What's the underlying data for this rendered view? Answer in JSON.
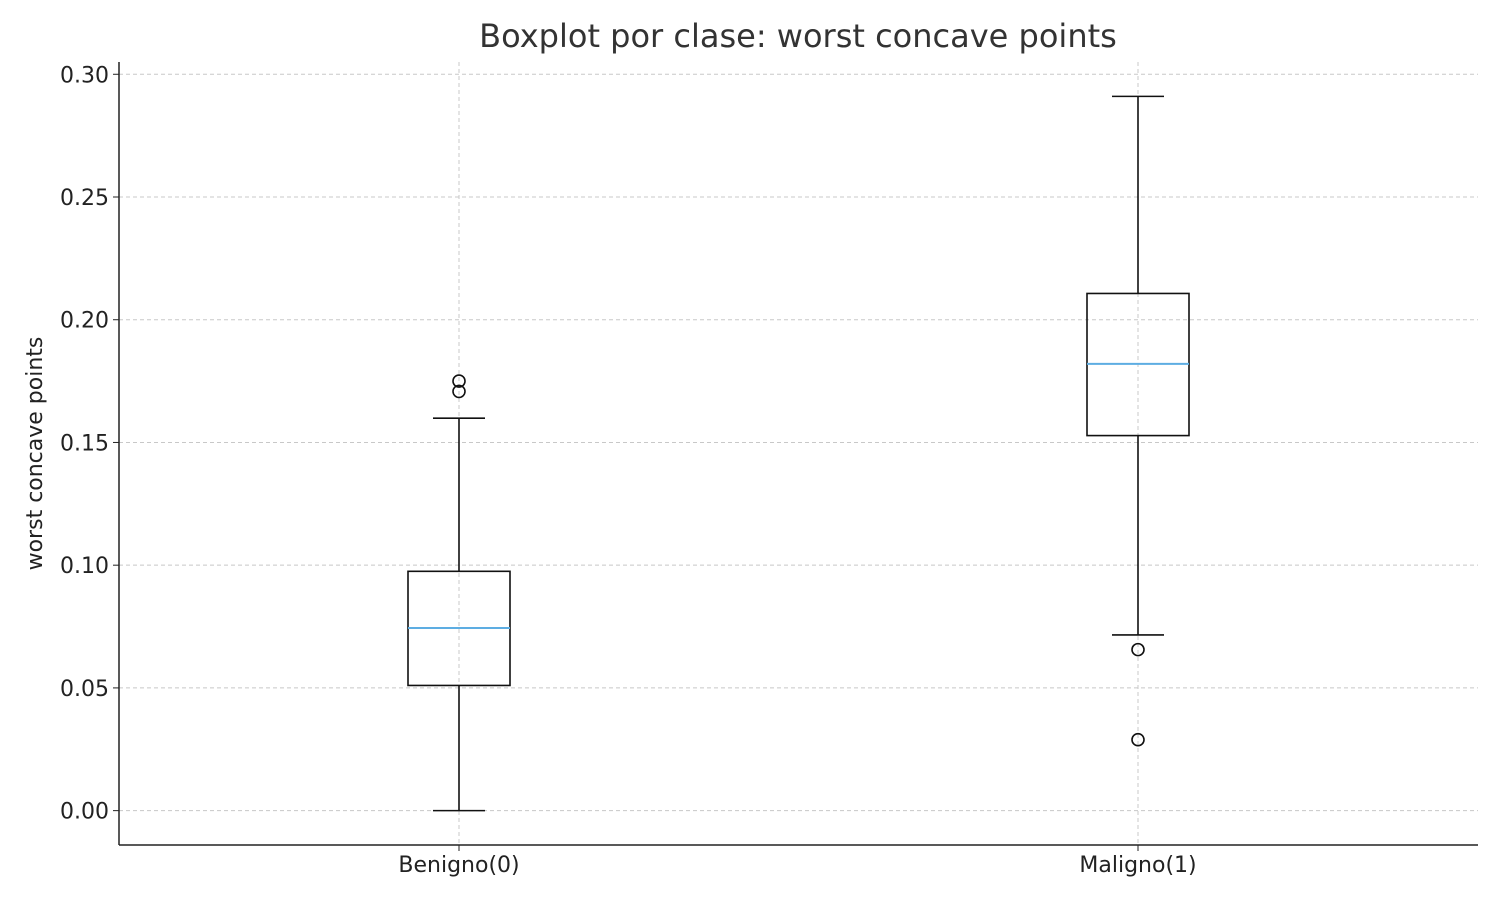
{
  "chart_data": {
    "type": "boxplot",
    "title": "Boxplot por clase: worst concave points",
    "xlabel": "",
    "ylabel": "worst concave points",
    "ylim": [
      -0.014,
      0.305
    ],
    "yticks": [
      0.0,
      0.05,
      0.1,
      0.15,
      0.2,
      0.25,
      0.3
    ],
    "ytick_labels": [
      "0.00",
      "0.05",
      "0.10",
      "0.15",
      "0.20",
      "0.25",
      "0.30"
    ],
    "grid": true,
    "categories": [
      "Benigno(0)",
      "Maligno(1)"
    ],
    "boxes": [
      {
        "label": "Benigno(0)",
        "whisker_low": 0.0,
        "q1": 0.051,
        "median": 0.0744,
        "q3": 0.0975,
        "whisker_high": 0.1599,
        "fliers": [
          0.1708,
          0.175
        ]
      },
      {
        "label": "Maligno(1)",
        "whisker_low": 0.0716,
        "q1": 0.1528,
        "median": 0.182,
        "q3": 0.2107,
        "whisker_high": 0.291,
        "fliers": [
          0.0656,
          0.0289
        ]
      }
    ],
    "colors": {
      "box": "#111111",
      "median": "#5dade2",
      "grid": "#c8c8c8",
      "axis": "#222222"
    }
  }
}
